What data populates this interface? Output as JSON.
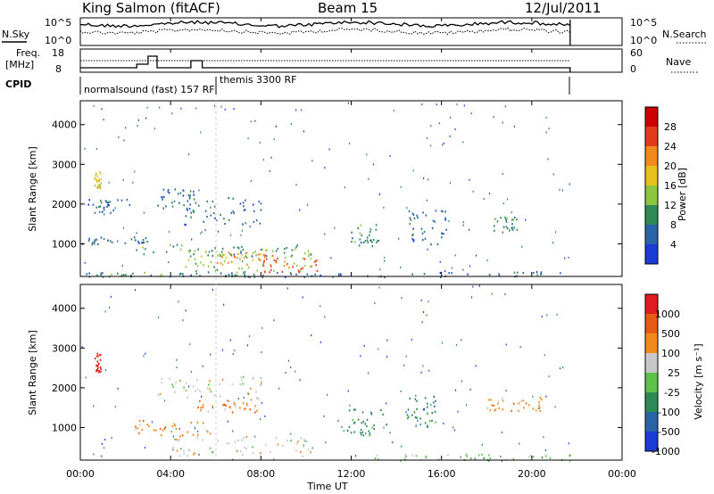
{
  "header": {
    "station": "King Salmon (fitACF)",
    "beam": "Beam 15",
    "date": "12/Jul/2011"
  },
  "top_panels": {
    "nsky_label": "N.Sky",
    "nsky_ticks": [
      "10^5",
      "10^0"
    ],
    "nsearch_label": "N.Search",
    "nsearch_ticks": [
      "10^5",
      "10^0"
    ],
    "freq_label": "Freq.",
    "freq_unit": "[MHz]",
    "freq_ticks": [
      "18",
      "8"
    ],
    "nave_label": "Nave",
    "nave_ticks": [
      "60",
      "0"
    ],
    "cpid_label": "CPID",
    "cpid_segments": [
      {
        "name": "normalsound (fast) 157 RF",
        "start_hour": 0.0,
        "end_hour": 6.0
      },
      {
        "name": "themis 3300 RF",
        "start_hour": 6.0,
        "end_hour": 21.7
      }
    ]
  },
  "chart_data": [
    {
      "type": "heatmap",
      "quantity": "Power",
      "ylabel": "Slant Range [km]",
      "ylim": [
        180,
        4600
      ],
      "y_ticks": [
        "4000",
        "3000",
        "2000",
        "1000"
      ],
      "colorbar": {
        "label": "Power [dB]",
        "ticks": [
          "28",
          "24",
          "20",
          "16",
          "12",
          "8",
          "4"
        ],
        "colors": [
          "#1a3bd6",
          "#2a64a8",
          "#2e8a55",
          "#8cc63f",
          "#e8c21b",
          "#f08a1c",
          "#e23a1c",
          "#cc0000"
        ]
      },
      "echo_regions": [
        {
          "t0": 0.6,
          "t1": 0.9,
          "r0": 2400,
          "r1": 2900,
          "level": 4
        },
        {
          "t0": 0.3,
          "t1": 2.2,
          "r0": 1800,
          "r1": 2150,
          "level": 1
        },
        {
          "t0": 3.4,
          "t1": 5.0,
          "r0": 1800,
          "r1": 2400,
          "level": 1
        },
        {
          "t0": 4.6,
          "t1": 8.2,
          "r0": 1500,
          "r1": 2200,
          "level": 1
        },
        {
          "t0": 0.0,
          "t1": 3.0,
          "r0": 1000,
          "r1": 1200,
          "level": 1
        },
        {
          "t0": 2.4,
          "t1": 9.8,
          "r0": 700,
          "r1": 1000,
          "level": 2
        },
        {
          "t0": 4.6,
          "t1": 10.4,
          "r0": 300,
          "r1": 900,
          "level": 3
        },
        {
          "t0": 8.0,
          "t1": 10.6,
          "r0": 300,
          "r1": 650,
          "level": 6
        },
        {
          "t0": 6.0,
          "t1": 8.8,
          "r0": 500,
          "r1": 800,
          "level": 5
        },
        {
          "t0": 11.9,
          "t1": 13.2,
          "r0": 900,
          "r1": 1500,
          "level": 2
        },
        {
          "t0": 14.5,
          "t1": 16.2,
          "r0": 1000,
          "r1": 1900,
          "level": 1
        },
        {
          "t0": 18.3,
          "t1": 19.4,
          "r0": 1300,
          "r1": 1700,
          "level": 2
        },
        {
          "t0": 0.0,
          "t1": 21.7,
          "r0": 180,
          "r1": 320,
          "level": 1
        },
        {
          "t0": 0.0,
          "t1": 10.5,
          "r0": 180,
          "r1": 300,
          "level": 2
        }
      ]
    },
    {
      "type": "heatmap",
      "quantity": "Velocity",
      "ylabel": "Slant Range [km]",
      "xlabel": "Time UT",
      "ylim": [
        180,
        4600
      ],
      "y_ticks": [
        "4000",
        "3000",
        "2000",
        "1000"
      ],
      "x_ticks": [
        "00:00",
        "04:00",
        "08:00",
        "12:00",
        "16:00",
        "20:00",
        "00:00"
      ],
      "colorbar": {
        "label": "Velocity [m s⁻¹]",
        "ticks": [
          "1000",
          "500",
          "100",
          "25",
          "-25",
          "-100",
          "-500",
          "-1000"
        ],
        "colors": [
          "#1a3bd6",
          "#2a64a8",
          "#2e8a55",
          "#5cc24a",
          "#c8c8c8",
          "#f08a1c",
          "#e85a14",
          "#e01c1c"
        ]
      },
      "echo_regions": [
        {
          "t0": 0.6,
          "t1": 0.9,
          "r0": 2400,
          "r1": 2900,
          "level": 7
        },
        {
          "t0": 3.4,
          "t1": 8.2,
          "r0": 1700,
          "r1": 2300,
          "level": 4
        },
        {
          "t0": 4.8,
          "t1": 7.8,
          "r0": 1400,
          "r1": 1700,
          "level": 5
        },
        {
          "t0": 2.4,
          "t1": 5.8,
          "r0": 800,
          "r1": 1200,
          "level": 5
        },
        {
          "t0": 4.0,
          "t1": 10.2,
          "r0": 300,
          "r1": 800,
          "level": 4
        },
        {
          "t0": 11.8,
          "t1": 13.6,
          "r0": 800,
          "r1": 1500,
          "level": 2
        },
        {
          "t0": 14.4,
          "t1": 15.8,
          "r0": 1000,
          "r1": 1800,
          "level": 2
        },
        {
          "t0": 18.0,
          "t1": 20.4,
          "r0": 1400,
          "r1": 1800,
          "level": 5
        },
        {
          "t0": 12.0,
          "t1": 21.7,
          "r0": 180,
          "r1": 350,
          "level": 3
        }
      ]
    }
  ]
}
